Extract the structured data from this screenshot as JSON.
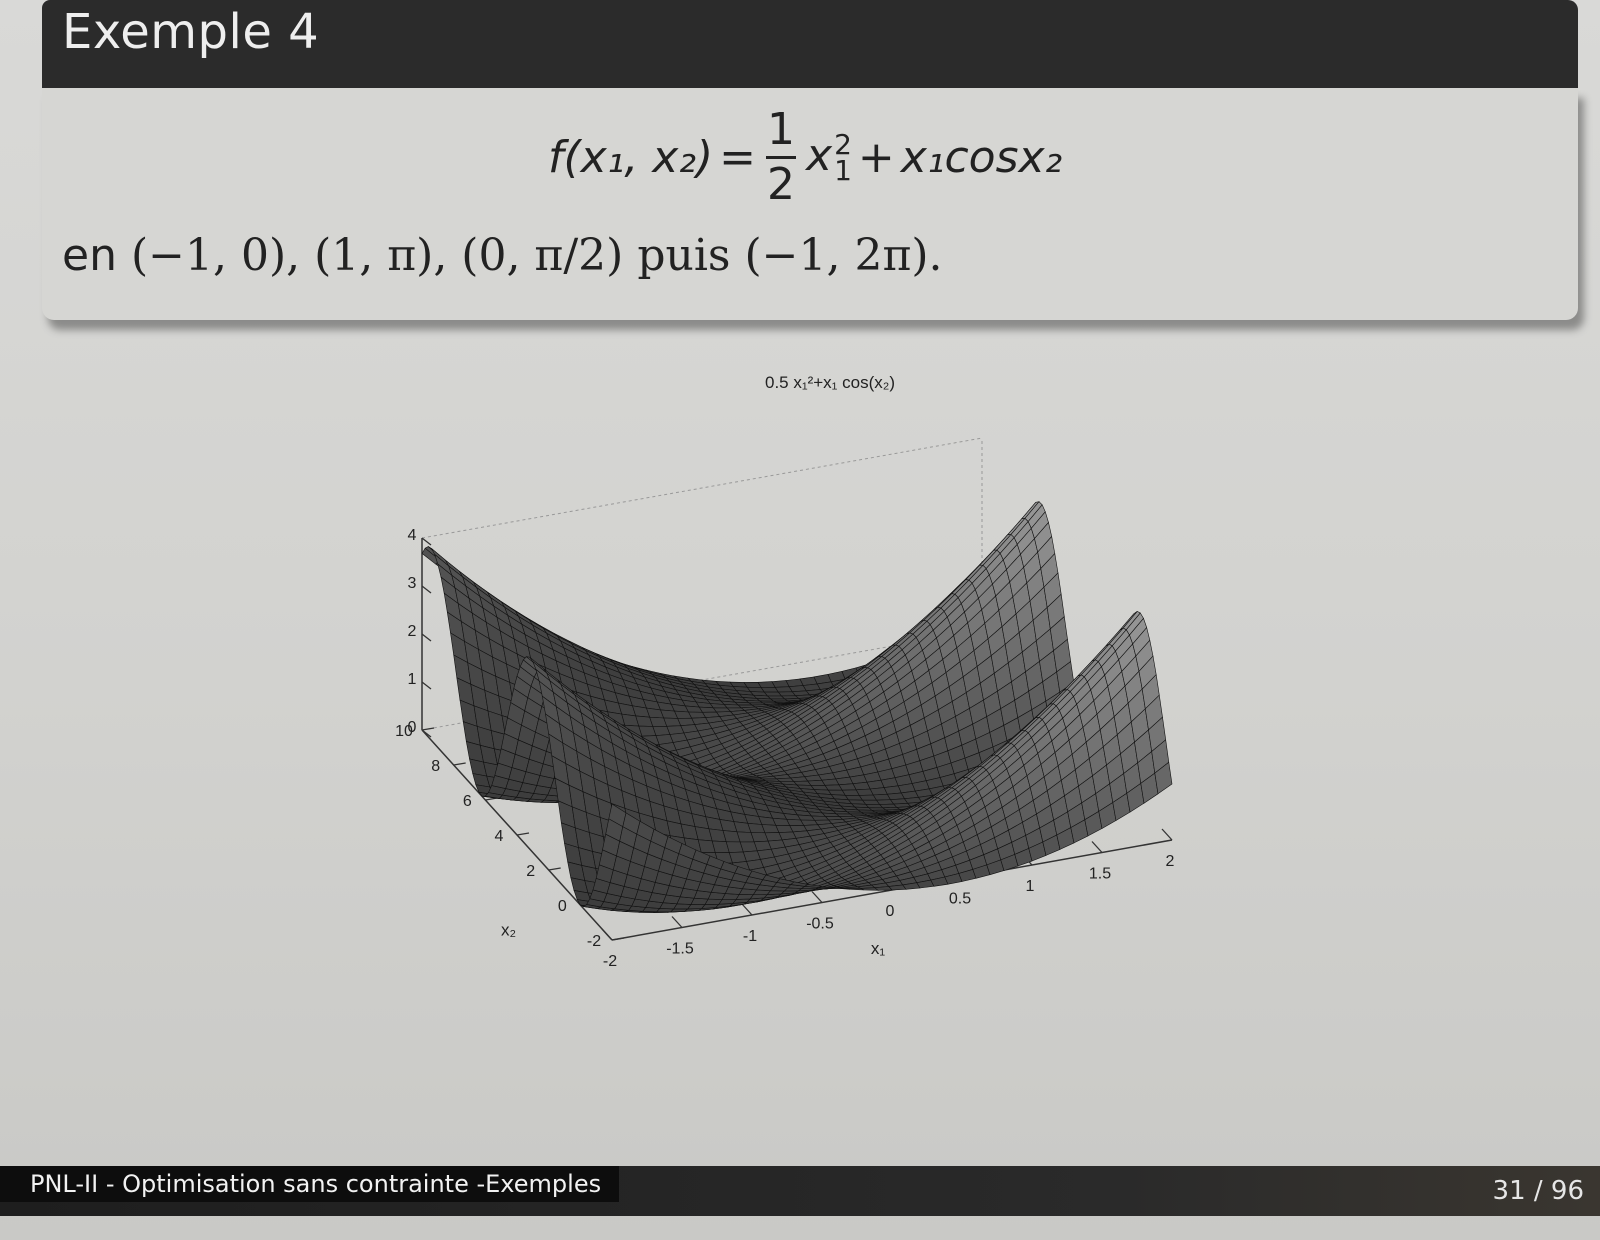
{
  "slide": {
    "title": "Exemple 4",
    "equation": {
      "lhs": "f(x₁, x₂)",
      "equals": "=",
      "frac_num": "1",
      "frac_den": "2",
      "term1_base": "x",
      "term1_sub": "1",
      "term1_sup": "2",
      "plus": "+",
      "term2": "x₁cosx₂"
    },
    "points_line": {
      "prefix": "en",
      "text": "(−1, 0), (1, π), (0, π/2) puis (−1, 2π)."
    }
  },
  "chart_data": {
    "type": "surface",
    "title": "0.5 x₁²+x₁ cos(x₂)",
    "xlabel": "x₁",
    "ylabel": "x₂",
    "xlim": [
      -2,
      2
    ],
    "ylim": [
      -2,
      10
    ],
    "zlim": [
      0,
      4
    ],
    "x_ticks": [
      "-2",
      "-1.5",
      "-1",
      "-0.5",
      "0",
      "0.5",
      "1",
      "1.5",
      "2"
    ],
    "y_ticks": [
      "-2",
      "0",
      "2",
      "4",
      "6",
      "8",
      "10"
    ],
    "z_ticks": [
      "0",
      "1",
      "2",
      "3",
      "4"
    ],
    "function": "0.5*x1^2 + x1*cos(x2)",
    "colormap": "gray"
  },
  "footer": {
    "left": "PNL-II - Optimisation sans contrainte -Exemples",
    "right": "31 / 96"
  }
}
